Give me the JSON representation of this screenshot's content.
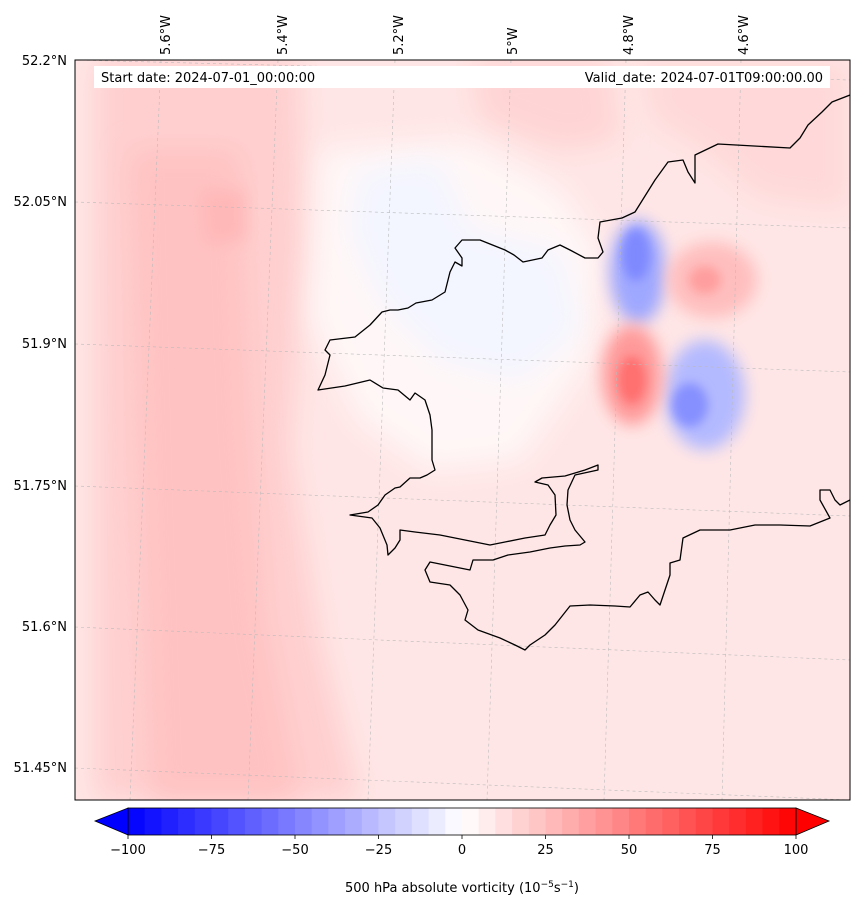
{
  "map": {
    "start_label": "Start date: 2024-07-01_00:00:00",
    "valid_label": "Valid_date: 2024-07-01T09:00:00.00",
    "longitude_labels": [
      "5.6°W",
      "5.4°W",
      "5.2°W",
      "5°W",
      "4.8°W",
      "4.6°W"
    ],
    "latitude_labels": [
      "52.2°N",
      "52.05°N",
      "51.9°N",
      "51.75°N",
      "51.6°N",
      "51.45°N"
    ],
    "field": "500 hPa absolute vorticity",
    "colormap": "bwr",
    "coastline_color": "#000000",
    "gridline_color": "#bbbbbb"
  },
  "colorbar": {
    "ticks": [
      "−100",
      "−75",
      "−50",
      "−25",
      "0",
      "25",
      "50",
      "75",
      "100"
    ],
    "tick_values": [
      -100,
      -75,
      -50,
      -25,
      0,
      25,
      50,
      75,
      100
    ],
    "range": [
      -100,
      100
    ],
    "steps": 40,
    "extend": "both",
    "label_main": "500 hPa absolute vorticity (10",
    "label_exp1": "−5",
    "label_mid": "s",
    "label_exp2": "−1",
    "label_end": ")"
  }
}
